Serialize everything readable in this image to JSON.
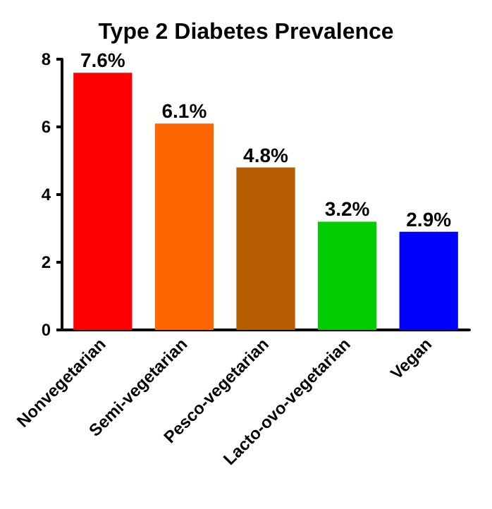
{
  "chart_data": {
    "type": "bar",
    "title": "Type 2 Diabetes Prevalence",
    "categories": [
      "Nonvegetarian",
      "Semi-vegetarian",
      "Pesco-vegetarian",
      "Lacto-ovo-vegetarian",
      "Vegan"
    ],
    "values": [
      7.6,
      6.1,
      4.8,
      3.2,
      2.9
    ],
    "value_labels": [
      "7.6%",
      "6.1%",
      "4.8%",
      "3.2%",
      "2.9%"
    ],
    "colors": [
      "#ff0000",
      "#ff6600",
      "#b85c00",
      "#00cc00",
      "#0000ff"
    ],
    "ylim": [
      0,
      8
    ],
    "yticks": [
      0,
      2,
      4,
      6,
      8
    ],
    "grid": false
  }
}
